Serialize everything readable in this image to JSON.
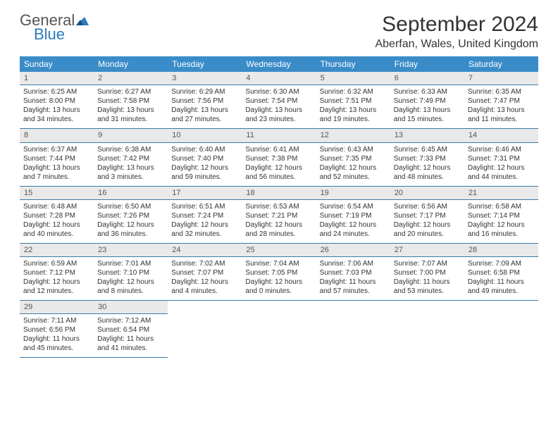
{
  "logo": {
    "word1": "General",
    "word2": "Blue"
  },
  "title": "September 2024",
  "location": "Aberfan, Wales, United Kingdom",
  "colors": {
    "header_bg": "#3a8cc9",
    "header_text": "#ffffff",
    "daynum_bg": "#e9e9e9",
    "rule": "#3a7aa8",
    "logo_gray": "#555555",
    "logo_blue": "#2a7bbf"
  },
  "day_names": [
    "Sunday",
    "Monday",
    "Tuesday",
    "Wednesday",
    "Thursday",
    "Friday",
    "Saturday"
  ],
  "weeks": [
    [
      {
        "n": "1",
        "sr": "Sunrise: 6:25 AM",
        "ss": "Sunset: 8:00 PM",
        "d1": "Daylight: 13 hours",
        "d2": "and 34 minutes."
      },
      {
        "n": "2",
        "sr": "Sunrise: 6:27 AM",
        "ss": "Sunset: 7:58 PM",
        "d1": "Daylight: 13 hours",
        "d2": "and 31 minutes."
      },
      {
        "n": "3",
        "sr": "Sunrise: 6:29 AM",
        "ss": "Sunset: 7:56 PM",
        "d1": "Daylight: 13 hours",
        "d2": "and 27 minutes."
      },
      {
        "n": "4",
        "sr": "Sunrise: 6:30 AM",
        "ss": "Sunset: 7:54 PM",
        "d1": "Daylight: 13 hours",
        "d2": "and 23 minutes."
      },
      {
        "n": "5",
        "sr": "Sunrise: 6:32 AM",
        "ss": "Sunset: 7:51 PM",
        "d1": "Daylight: 13 hours",
        "d2": "and 19 minutes."
      },
      {
        "n": "6",
        "sr": "Sunrise: 6:33 AM",
        "ss": "Sunset: 7:49 PM",
        "d1": "Daylight: 13 hours",
        "d2": "and 15 minutes."
      },
      {
        "n": "7",
        "sr": "Sunrise: 6:35 AM",
        "ss": "Sunset: 7:47 PM",
        "d1": "Daylight: 13 hours",
        "d2": "and 11 minutes."
      }
    ],
    [
      {
        "n": "8",
        "sr": "Sunrise: 6:37 AM",
        "ss": "Sunset: 7:44 PM",
        "d1": "Daylight: 13 hours",
        "d2": "and 7 minutes."
      },
      {
        "n": "9",
        "sr": "Sunrise: 6:38 AM",
        "ss": "Sunset: 7:42 PM",
        "d1": "Daylight: 13 hours",
        "d2": "and 3 minutes."
      },
      {
        "n": "10",
        "sr": "Sunrise: 6:40 AM",
        "ss": "Sunset: 7:40 PM",
        "d1": "Daylight: 12 hours",
        "d2": "and 59 minutes."
      },
      {
        "n": "11",
        "sr": "Sunrise: 6:41 AM",
        "ss": "Sunset: 7:38 PM",
        "d1": "Daylight: 12 hours",
        "d2": "and 56 minutes."
      },
      {
        "n": "12",
        "sr": "Sunrise: 6:43 AM",
        "ss": "Sunset: 7:35 PM",
        "d1": "Daylight: 12 hours",
        "d2": "and 52 minutes."
      },
      {
        "n": "13",
        "sr": "Sunrise: 6:45 AM",
        "ss": "Sunset: 7:33 PM",
        "d1": "Daylight: 12 hours",
        "d2": "and 48 minutes."
      },
      {
        "n": "14",
        "sr": "Sunrise: 6:46 AM",
        "ss": "Sunset: 7:31 PM",
        "d1": "Daylight: 12 hours",
        "d2": "and 44 minutes."
      }
    ],
    [
      {
        "n": "15",
        "sr": "Sunrise: 6:48 AM",
        "ss": "Sunset: 7:28 PM",
        "d1": "Daylight: 12 hours",
        "d2": "and 40 minutes."
      },
      {
        "n": "16",
        "sr": "Sunrise: 6:50 AM",
        "ss": "Sunset: 7:26 PM",
        "d1": "Daylight: 12 hours",
        "d2": "and 36 minutes."
      },
      {
        "n": "17",
        "sr": "Sunrise: 6:51 AM",
        "ss": "Sunset: 7:24 PM",
        "d1": "Daylight: 12 hours",
        "d2": "and 32 minutes."
      },
      {
        "n": "18",
        "sr": "Sunrise: 6:53 AM",
        "ss": "Sunset: 7:21 PM",
        "d1": "Daylight: 12 hours",
        "d2": "and 28 minutes."
      },
      {
        "n": "19",
        "sr": "Sunrise: 6:54 AM",
        "ss": "Sunset: 7:19 PM",
        "d1": "Daylight: 12 hours",
        "d2": "and 24 minutes."
      },
      {
        "n": "20",
        "sr": "Sunrise: 6:56 AM",
        "ss": "Sunset: 7:17 PM",
        "d1": "Daylight: 12 hours",
        "d2": "and 20 minutes."
      },
      {
        "n": "21",
        "sr": "Sunrise: 6:58 AM",
        "ss": "Sunset: 7:14 PM",
        "d1": "Daylight: 12 hours",
        "d2": "and 16 minutes."
      }
    ],
    [
      {
        "n": "22",
        "sr": "Sunrise: 6:59 AM",
        "ss": "Sunset: 7:12 PM",
        "d1": "Daylight: 12 hours",
        "d2": "and 12 minutes."
      },
      {
        "n": "23",
        "sr": "Sunrise: 7:01 AM",
        "ss": "Sunset: 7:10 PM",
        "d1": "Daylight: 12 hours",
        "d2": "and 8 minutes."
      },
      {
        "n": "24",
        "sr": "Sunrise: 7:02 AM",
        "ss": "Sunset: 7:07 PM",
        "d1": "Daylight: 12 hours",
        "d2": "and 4 minutes."
      },
      {
        "n": "25",
        "sr": "Sunrise: 7:04 AM",
        "ss": "Sunset: 7:05 PM",
        "d1": "Daylight: 12 hours",
        "d2": "and 0 minutes."
      },
      {
        "n": "26",
        "sr": "Sunrise: 7:06 AM",
        "ss": "Sunset: 7:03 PM",
        "d1": "Daylight: 11 hours",
        "d2": "and 57 minutes."
      },
      {
        "n": "27",
        "sr": "Sunrise: 7:07 AM",
        "ss": "Sunset: 7:00 PM",
        "d1": "Daylight: 11 hours",
        "d2": "and 53 minutes."
      },
      {
        "n": "28",
        "sr": "Sunrise: 7:09 AM",
        "ss": "Sunset: 6:58 PM",
        "d1": "Daylight: 11 hours",
        "d2": "and 49 minutes."
      }
    ],
    [
      {
        "n": "29",
        "sr": "Sunrise: 7:11 AM",
        "ss": "Sunset: 6:56 PM",
        "d1": "Daylight: 11 hours",
        "d2": "and 45 minutes."
      },
      {
        "n": "30",
        "sr": "Sunrise: 7:12 AM",
        "ss": "Sunset: 6:54 PM",
        "d1": "Daylight: 11 hours",
        "d2": "and 41 minutes."
      },
      null,
      null,
      null,
      null,
      null
    ]
  ]
}
